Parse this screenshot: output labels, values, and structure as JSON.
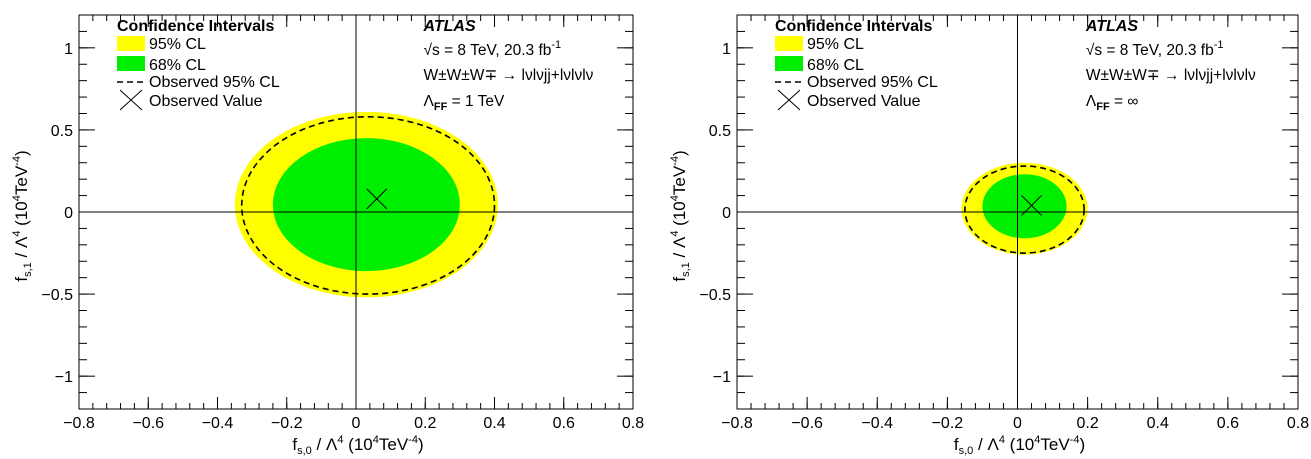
{
  "colors": {
    "band95": "#ffff00",
    "band68": "#00ee00",
    "observed": "#000000"
  },
  "chart_data": [
    {
      "type": "contour",
      "xlabel_main": "f",
      "xlabel_sub": "s,0",
      "xlabel_rest": " / Λ",
      "xlabel_pow": "4",
      "xlabel_unit": " (10",
      "xlabel_unit_pow1": "4",
      "xlabel_unit_mid": "TeV",
      "xlabel_unit_pow2": "-4",
      "xlabel_close": ")",
      "ylabel_main": "f",
      "ylabel_sub": "s,1",
      "ylabel_rest": " / Λ",
      "ylabel_pow": "4",
      "ylabel_unit": " (10",
      "ylabel_unit_pow1": "4",
      "ylabel_unit_mid": "TeV",
      "ylabel_unit_pow2": "-4",
      "ylabel_close": ")",
      "xlim": [
        -0.8,
        0.8
      ],
      "ylim": [
        -1.2,
        1.2
      ],
      "x_ticks": [
        -0.8,
        -0.6,
        -0.4,
        -0.2,
        0,
        0.2,
        0.4,
        0.6,
        0.8
      ],
      "x_tick_labels": [
        "−0.8",
        "−0.6",
        "−0.4",
        "−0.2",
        "0",
        "0.2",
        "0.4",
        "0.6",
        "0.8"
      ],
      "y_ticks": [
        -1,
        -0.5,
        0,
        0.5,
        1
      ],
      "y_tick_labels": [
        "−1",
        "−0.5",
        "0",
        "0.5",
        "1"
      ],
      "legend": {
        "title": "Confidence Intervals",
        "entries": [
          "95% CL",
          "68% CL",
          "Observed 95% CL",
          "Observed Value"
        ],
        "placement": "top-left"
      },
      "annotation": {
        "experiment": "ATLAS",
        "energy": "√s = 8 TeV, 20.3 fb",
        "energy_pow": "-1",
        "process": "W±W±W∓ → lνlνjj+lνlνlν",
        "cutoff_prefix": "Λ",
        "cutoff_sub": "FF",
        "cutoff_value": " = 1 TeV"
      },
      "band95": {
        "x_range": [
          -0.35,
          0.41
        ],
        "y_range": [
          -0.52,
          0.61
        ]
      },
      "band68": {
        "x_range": [
          -0.24,
          0.3
        ],
        "y_range": [
          -0.36,
          0.45
        ]
      },
      "observed95": {
        "x_range": [
          -0.33,
          0.4
        ],
        "y_range": [
          -0.5,
          0.58
        ]
      },
      "observed_value": {
        "x": 0.06,
        "y": 0.08
      }
    },
    {
      "type": "contour",
      "xlabel_main": "f",
      "xlabel_sub": "s,0",
      "xlabel_rest": " / Λ",
      "xlabel_pow": "4",
      "xlabel_unit": " (10",
      "xlabel_unit_pow1": "4",
      "xlabel_unit_mid": "TeV",
      "xlabel_unit_pow2": "-4",
      "xlabel_close": ")",
      "ylabel_main": "f",
      "ylabel_sub": "s,1",
      "ylabel_rest": " / Λ",
      "ylabel_pow": "4",
      "ylabel_unit": " (10",
      "ylabel_unit_pow1": "4",
      "ylabel_unit_mid": "TeV",
      "ylabel_unit_pow2": "-4",
      "ylabel_close": ")",
      "xlim": [
        -0.8,
        0.8
      ],
      "ylim": [
        -1.2,
        1.2
      ],
      "x_ticks": [
        -0.8,
        -0.6,
        -0.4,
        -0.2,
        0,
        0.2,
        0.4,
        0.6,
        0.8
      ],
      "x_tick_labels": [
        "−0.8",
        "−0.6",
        "−0.4",
        "−0.2",
        "0",
        "0.2",
        "0.4",
        "0.6",
        "0.8"
      ],
      "y_ticks": [
        -1,
        -0.5,
        0,
        0.5,
        1
      ],
      "y_tick_labels": [
        "−1",
        "−0.5",
        "0",
        "0.5",
        "1"
      ],
      "legend": {
        "title": "Confidence Intervals",
        "entries": [
          "95% CL",
          "68% CL",
          "Observed 95% CL",
          "Observed Value"
        ],
        "placement": "top-left"
      },
      "annotation": {
        "experiment": "ATLAS",
        "energy": "√s = 8 TeV, 20.3 fb",
        "energy_pow": "-1",
        "process": "W±W±W∓ → lνlνjj+lνlνlν",
        "cutoff_prefix": "Λ",
        "cutoff_sub": "FF",
        "cutoff_value": " = ∞"
      },
      "band95": {
        "x_range": [
          -0.16,
          0.2
        ],
        "y_range": [
          -0.26,
          0.3
        ]
      },
      "band68": {
        "x_range": [
          -0.1,
          0.14
        ],
        "y_range": [
          -0.16,
          0.23
        ]
      },
      "observed95": {
        "x_range": [
          -0.15,
          0.19
        ],
        "y_range": [
          -0.25,
          0.28
        ]
      },
      "observed_value": {
        "x": 0.04,
        "y": 0.04
      }
    }
  ]
}
